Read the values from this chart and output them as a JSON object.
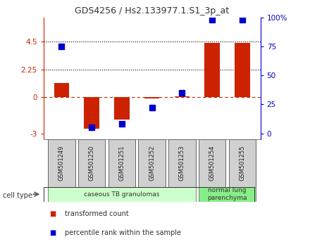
{
  "title": "GDS4256 / Hs2.133977.1.S1_3p_at",
  "samples": [
    "GSM501249",
    "GSM501250",
    "GSM501251",
    "GSM501252",
    "GSM501253",
    "GSM501254",
    "GSM501255"
  ],
  "transformed_count": [
    1.1,
    -2.6,
    -1.9,
    -0.15,
    0.05,
    4.4,
    4.4
  ],
  "percentile_rank": [
    75,
    5,
    8,
    22,
    35,
    98,
    98
  ],
  "ylim_left": [
    -3.5,
    6.5
  ],
  "ylim_right": [
    -3.5,
    6.5
  ],
  "yticks_left": [
    -3,
    0,
    2.25,
    4.5
  ],
  "ytick_labels_left": [
    "-3",
    "0",
    "2.25",
    "4.5"
  ],
  "yticks_right_pos": [
    -3,
    0,
    2.25,
    4.5
  ],
  "ytick_labels_right": [
    "0",
    "25",
    "50",
    "75"
  ],
  "ytick_top_label": "100%",
  "bar_color": "#cc2200",
  "dot_color": "#0000cc",
  "cell_type_groups": [
    {
      "label": "caseous TB granulomas",
      "indices": [
        0,
        1,
        2,
        3,
        4
      ],
      "color": "#ccffcc"
    },
    {
      "label": "normal lung\nparenchyma",
      "indices": [
        5,
        6
      ],
      "color": "#88ee88"
    }
  ],
  "cell_type_label": "cell type",
  "legend_items": [
    {
      "label": "transformed count",
      "color": "#cc2200"
    },
    {
      "label": "percentile rank within the sample",
      "color": "#0000cc"
    }
  ],
  "left_axis_color": "#cc2200",
  "right_axis_color": "#0000cc",
  "bar_width": 0.5,
  "dot_size": 35,
  "background_color": "#ffffff",
  "pr_scale_min": -3,
  "pr_scale_max": 6.5,
  "pr_data_min": 0,
  "pr_data_max": 100
}
